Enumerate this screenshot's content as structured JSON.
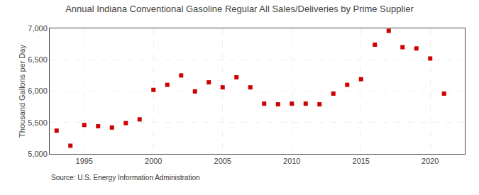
{
  "chart_data": {
    "type": "scatter",
    "title": "Annual Indiana Conventional Gasoline Regular All Sales/Deliveries by Prime Supplier",
    "ylabel": "Thousand Gallons per Day",
    "source": "Source: U.S. Energy Information Administration",
    "x": [
      1993,
      1994,
      1995,
      1996,
      1997,
      1998,
      1999,
      2000,
      2001,
      2002,
      2003,
      2004,
      2005,
      2006,
      2007,
      2008,
      2009,
      2010,
      2011,
      2012,
      2013,
      2014,
      2015,
      2016,
      2017,
      2018,
      2019,
      2020,
      2021
    ],
    "values": [
      5370,
      5130,
      5460,
      5440,
      5420,
      5490,
      5550,
      6020,
      6100,
      6250,
      5995,
      6140,
      6060,
      6220,
      6060,
      5800,
      5790,
      5800,
      5800,
      5790,
      5960,
      6100,
      6190,
      6740,
      6960,
      6700,
      6680,
      6520,
      5960
    ],
    "color": "#cc0000",
    "marker": "square",
    "ylim": [
      5000,
      7000
    ],
    "yticks": [
      {
        "value": 5000,
        "label": "5,000"
      },
      {
        "value": 5500,
        "label": "5,500"
      },
      {
        "value": 6000,
        "label": "6,000"
      },
      {
        "value": 6500,
        "label": "6,500"
      },
      {
        "value": 7000,
        "label": "7,000"
      }
    ],
    "xlim": [
      1992.5,
      2022.5
    ],
    "xticks": [
      1995,
      2000,
      2005,
      2010,
      2015,
      2020
    ],
    "grid": true
  }
}
